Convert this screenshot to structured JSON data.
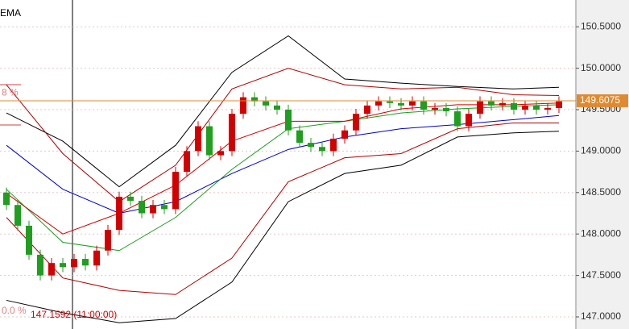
{
  "chart_data": {
    "type": "candlestick",
    "indicator_label": "EMA",
    "open": [
      148.5,
      148.35,
      148.1,
      147.75,
      147.5,
      147.65,
      147.6,
      147.7,
      147.62,
      147.8,
      148.05,
      148.45,
      148.4,
      148.25,
      148.35,
      148.3,
      148.75,
      149.0,
      149.3,
      148.95,
      149.0,
      149.45,
      149.65,
      149.6,
      149.55,
      149.5,
      149.25,
      149.1,
      149.05,
      149.0,
      149.15,
      149.25,
      149.45,
      149.55,
      149.6,
      149.58,
      149.55,
      149.6,
      149.5,
      149.52,
      149.48,
      149.3,
      149.45,
      149.6,
      149.55,
      149.58,
      149.5,
      149.55,
      149.5,
      149.52
    ],
    "high": [
      148.56,
      148.41,
      148.16,
      147.81,
      147.71,
      147.71,
      147.76,
      147.76,
      147.86,
      148.11,
      148.51,
      148.51,
      148.46,
      148.41,
      148.41,
      148.81,
      149.06,
      149.36,
      149.36,
      149.06,
      149.51,
      149.71,
      149.71,
      149.66,
      149.61,
      149.56,
      149.31,
      149.16,
      149.11,
      149.21,
      149.31,
      149.51,
      149.61,
      149.66,
      149.66,
      149.64,
      149.66,
      149.66,
      149.58,
      149.58,
      149.54,
      149.51,
      149.66,
      149.66,
      149.64,
      149.64,
      149.61,
      149.61,
      149.58,
      149.66
    ],
    "low": [
      148.29,
      148.04,
      147.69,
      147.44,
      147.44,
      147.54,
      147.54,
      147.56,
      147.56,
      147.74,
      147.99,
      148.34,
      148.19,
      148.19,
      148.24,
      148.24,
      148.69,
      148.94,
      148.89,
      148.89,
      148.94,
      149.39,
      149.54,
      149.49,
      149.44,
      149.19,
      149.04,
      148.99,
      148.94,
      148.94,
      149.09,
      149.19,
      149.39,
      149.49,
      149.52,
      149.49,
      149.49,
      149.44,
      149.44,
      149.42,
      149.24,
      149.24,
      149.39,
      149.49,
      149.49,
      149.44,
      149.44,
      149.44,
      149.44,
      149.46
    ],
    "close": [
      148.35,
      148.1,
      147.75,
      147.5,
      147.65,
      147.6,
      147.7,
      147.62,
      147.8,
      148.05,
      148.45,
      148.4,
      148.25,
      148.35,
      148.3,
      148.75,
      149.0,
      149.3,
      148.95,
      149.0,
      149.45,
      149.65,
      149.6,
      149.55,
      149.5,
      149.25,
      149.1,
      149.05,
      149.0,
      149.15,
      149.25,
      149.45,
      149.55,
      149.6,
      149.58,
      149.55,
      149.6,
      149.5,
      149.52,
      149.48,
      149.3,
      149.45,
      149.6,
      149.55,
      149.58,
      149.5,
      149.55,
      149.5,
      149.52,
      149.6
    ],
    "up_color": "#d40000",
    "down_color": "#1f9e1f",
    "line_index": [
      0,
      5,
      10,
      15,
      20,
      25,
      30,
      35,
      40,
      45,
      49
    ],
    "lines": [
      {
        "color": "#0000cc",
        "values": [
          149.07,
          148.54,
          148.25,
          148.39,
          148.73,
          149.02,
          149.17,
          149.27,
          149.32,
          149.38,
          149.43
        ]
      },
      {
        "color": "#1a9e1a",
        "values": [
          148.54,
          147.9,
          147.8,
          148.2,
          148.78,
          149.27,
          149.36,
          149.46,
          149.51,
          149.54,
          149.56
        ]
      },
      {
        "color": "#d40000",
        "values": [
          148.49,
          148.0,
          148.25,
          148.59,
          149.12,
          149.36,
          149.36,
          149.51,
          149.56,
          149.56,
          149.58
        ]
      },
      {
        "color": "#000000",
        "values": [
          149.46,
          149.12,
          148.57,
          149.07,
          149.95,
          150.39,
          149.87,
          149.82,
          149.78,
          149.75,
          149.77
        ]
      },
      {
        "color": "#000000",
        "values": [
          147.2,
          147.05,
          146.93,
          146.98,
          147.42,
          148.39,
          148.73,
          148.83,
          149.17,
          149.22,
          149.24
        ]
      },
      {
        "color": "#b00000",
        "values": [
          149.8,
          148.97,
          148.39,
          148.83,
          149.75,
          150.0,
          149.8,
          149.75,
          149.77,
          149.68,
          149.67
        ]
      },
      {
        "color": "#b00000",
        "values": [
          148.2,
          147.47,
          147.32,
          147.27,
          147.71,
          148.63,
          148.92,
          148.97,
          149.27,
          149.34,
          149.34
        ]
      }
    ],
    "current_price": {
      "value": 149.6075,
      "label": "149.6075",
      "color": "#e08a30"
    },
    "low_note": "147.1592 (11:00:00)",
    "fib_labels": [
      {
        "value": 149.7,
        "label": "8 %"
      },
      {
        "value": 147.07,
        "label": "0.0 %"
      }
    ],
    "ylim": [
      146.854,
      150.823
    ],
    "yticks": [
      {
        "value": 147,
        "label": "147.0000"
      },
      {
        "value": 147.5,
        "label": "147.5000"
      },
      {
        "value": 148,
        "label": "148.0000"
      },
      {
        "value": 148.5,
        "label": "148.5000"
      },
      {
        "value": 149,
        "label": "149.0000"
      },
      {
        "value": 149.5,
        "label": "149.5000"
      },
      {
        "value": 150,
        "label": "150.0000"
      },
      {
        "value": 150.5,
        "label": "150.5000"
      }
    ],
    "grid": true
  }
}
